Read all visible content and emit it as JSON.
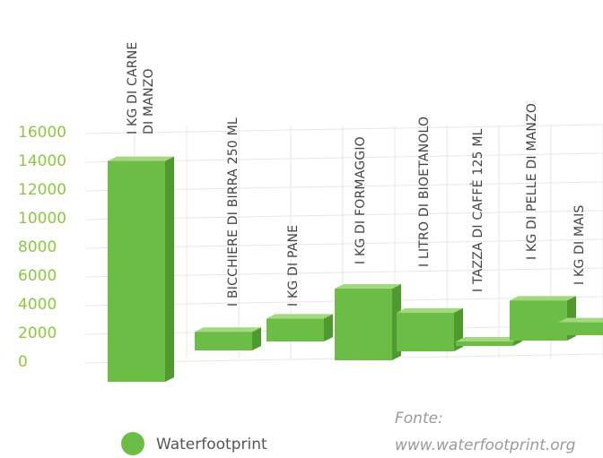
{
  "chart_data": {
    "type": "bar",
    "categories": [
      "I KG DI CARNE DI MANZO",
      "I BICCHIERE DI BIRRA 250 ML",
      "I KG DI PANE",
      "I KG DI FORMAGGIO",
      "I LITRO DI BIOETANOLO",
      "I TAZZA DI CAFFÈ 125 ML",
      "I KG DI PELLE DI MANZO",
      "I KG DI MAIS"
    ],
    "category_lines": [
      [
        "I KG DI CARNE",
        "DI MANZO"
      ],
      [
        "I BICCHIERE DI BIRRA 250 ML"
      ],
      [
        "I KG DI PANE"
      ],
      [
        "I KG DI FORMAGGIO"
      ],
      [
        "I LITRO DI BIOETANOLO"
      ],
      [
        "I TAZZA DI CAFFÈ 125 ML"
      ],
      [
        "I KG DI PELLE DI MANZO"
      ],
      [
        "I KG DI MAIS"
      ]
    ],
    "series": [
      {
        "name": "Waterfootprint",
        "values": [
          15400,
          1300,
          1600,
          5000,
          2700,
          140,
          2800,
          900
        ]
      }
    ],
    "yticks": [
      "0",
      "2000",
      "4000",
      "6000",
      "8000",
      "10000",
      "12000",
      "14000",
      "16000"
    ],
    "ylim": [
      0,
      16000
    ],
    "grid": true,
    "legend_position": "bottom-left",
    "colors": {
      "bar_front": "#6cbd45",
      "bar_top": "#a4d880",
      "bar_side": "#4e9a2f",
      "tick": "#8dc63f"
    }
  },
  "legend": {
    "label": "Waterfootprint"
  },
  "source": {
    "line1": "Fonte:",
    "line2": "www.waterfootprint.org"
  }
}
